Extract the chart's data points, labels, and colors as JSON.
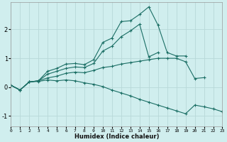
{
  "xlabel": "Humidex (Indice chaleur)",
  "bg_color": "#d0eeee",
  "grid_color": "#b8d8d8",
  "line_color": "#1a6e64",
  "x_data": [
    0,
    1,
    2,
    3,
    4,
    5,
    6,
    7,
    8,
    9,
    10,
    11,
    12,
    13,
    14,
    15,
    16,
    17,
    18,
    19,
    20,
    21,
    22,
    23
  ],
  "lines": [
    [
      0.07,
      -0.1,
      0.18,
      0.22,
      0.55,
      0.65,
      0.8,
      0.82,
      0.78,
      0.95,
      1.55,
      1.7,
      2.27,
      2.3,
      2.52,
      2.78,
      2.15,
      1.2,
      1.08,
      1.08,
      null,
      null,
      null,
      null
    ],
    [
      0.07,
      -0.1,
      0.18,
      0.22,
      0.45,
      0.55,
      0.65,
      0.7,
      0.68,
      0.82,
      1.25,
      1.42,
      1.75,
      1.95,
      2.18,
      1.05,
      1.2,
      null,
      null,
      null,
      null,
      null,
      null,
      null
    ],
    [
      0.07,
      -0.1,
      0.18,
      0.22,
      0.32,
      0.38,
      0.48,
      0.52,
      0.5,
      0.58,
      0.68,
      0.72,
      0.8,
      0.85,
      0.9,
      0.95,
      1.0,
      1.0,
      1.0,
      0.88,
      0.3,
      0.33,
      null,
      null
    ],
    [
      0.07,
      -0.1,
      0.18,
      0.2,
      0.25,
      0.22,
      0.25,
      0.22,
      0.15,
      0.1,
      0.02,
      -0.1,
      -0.2,
      -0.3,
      -0.42,
      -0.52,
      -0.62,
      -0.72,
      -0.82,
      -0.92,
      -0.62,
      -0.68,
      -0.75,
      -0.85
    ]
  ],
  "xlim": [
    0,
    23
  ],
  "ylim": [
    -1.35,
    2.95
  ],
  "yticks": [
    -1,
    0,
    1,
    2
  ],
  "xticks": [
    0,
    1,
    2,
    3,
    4,
    5,
    6,
    7,
    8,
    9,
    10,
    11,
    12,
    13,
    14,
    15,
    16,
    17,
    18,
    19,
    20,
    21,
    22,
    23
  ]
}
